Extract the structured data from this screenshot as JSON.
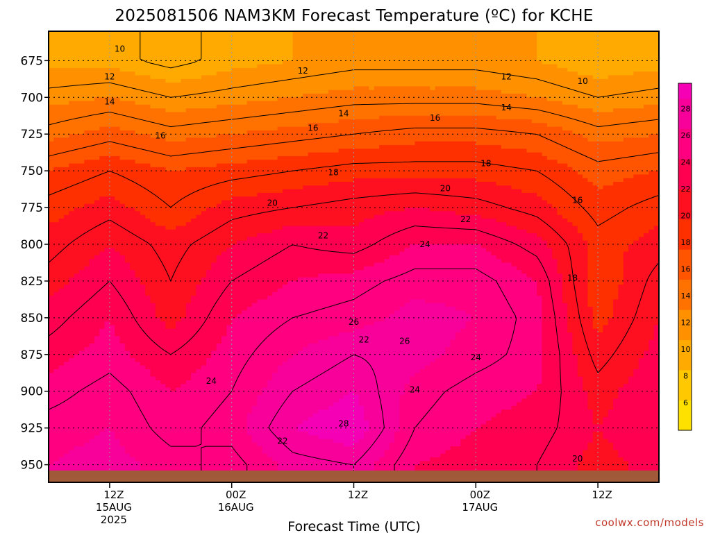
{
  "chart_data": {
    "type": "heatmap",
    "title": "2025081506 NAM3KM Forecast Temperature (ºC) for KCHE",
    "xlabel": "Forecast Time (UTC)",
    "ylabel": "",
    "credit": "coolwx.com/models",
    "y_ticks": [
      675,
      700,
      725,
      750,
      775,
      800,
      825,
      850,
      875,
      900,
      925,
      950
    ],
    "y_range": [
      655,
      962
    ],
    "y_direction": "pressure decreasing upward",
    "x_range_hours": [
      0,
      60
    ],
    "x_ticks": [
      {
        "hour": 6,
        "lines": [
          "12Z",
          "15AUG",
          "2025"
        ]
      },
      {
        "hour": 18,
        "lines": [
          "00Z",
          "16AUG"
        ]
      },
      {
        "hour": 30,
        "lines": [
          "12Z"
        ]
      },
      {
        "hour": 42,
        "lines": [
          "00Z",
          "17AUG"
        ]
      },
      {
        "hour": 54,
        "lines": [
          "12Z"
        ]
      }
    ],
    "grid": true,
    "colorbar": {
      "placement": "right",
      "ticks": [
        6,
        8,
        10,
        12,
        14,
        16,
        18,
        20,
        22,
        24,
        26,
        28
      ],
      "colors": [
        "#ffe100",
        "#ffc800",
        "#ffaa00",
        "#ff9000",
        "#ff7200",
        "#ff5400",
        "#ff3000",
        "#ff1020",
        "#ff0050",
        "#ff0080",
        "#f8009a",
        "#f500b4"
      ]
    },
    "levels": [
      675,
      700,
      725,
      750,
      775,
      800,
      825,
      850,
      875,
      900,
      925,
      950
    ],
    "hours": [
      0,
      6,
      12,
      18,
      24,
      30,
      36,
      42,
      48,
      54,
      60
    ],
    "temperature": [
      [
        10.5,
        10.5,
        9.5,
        10.5,
        11,
        11.5,
        11.5,
        11.5,
        11,
        10,
        10.5
      ],
      [
        12.5,
        13,
        12,
        12.5,
        13,
        13.5,
        13.5,
        13.5,
        13,
        12,
        12.5
      ],
      [
        14.5,
        15.5,
        14.5,
        15,
        15.5,
        16,
        16.5,
        16.5,
        16,
        14.5,
        15
      ],
      [
        17,
        18,
        17,
        17.5,
        18,
        18.5,
        18.5,
        18.5,
        18,
        16.5,
        17
      ],
      [
        18.5,
        19.5,
        18,
        19.5,
        20,
        20.5,
        21,
        20.5,
        19.5,
        17.5,
        18.5
      ],
      [
        19.5,
        21,
        19.5,
        21,
        22,
        21.5,
        23,
        23,
        21.5,
        18.5,
        19.5
      ],
      [
        20.5,
        22,
        20,
        22,
        23,
        23.5,
        24.5,
        24.5,
        23,
        18,
        20.5
      ],
      [
        21.5,
        23,
        20.5,
        23,
        24,
        24.5,
        25.5,
        25,
        23.5,
        18.5,
        21
      ],
      [
        22.5,
        23.5,
        22,
        23.5,
        25,
        26,
        25.5,
        24.5,
        23.5,
        19.5,
        21.5
      ],
      [
        23.5,
        24.5,
        23,
        24,
        26,
        27,
        24.5,
        23.5,
        23,
        20.5,
        22
      ],
      [
        24.5,
        25,
        23.5,
        24.5,
        27,
        28,
        24,
        23,
        22.5,
        21,
        22
      ],
      [
        25,
        25.5,
        24.5,
        23.5,
        25.5,
        26,
        23,
        22.5,
        22,
        20.5,
        21.5
      ]
    ],
    "contour_labels": [
      {
        "value": "10",
        "hour": 7.0,
        "level": 667
      },
      {
        "value": "12",
        "hour": 6.0,
        "level": 686
      },
      {
        "value": "12",
        "hour": 25.0,
        "level": 682
      },
      {
        "value": "12",
        "hour": 45.0,
        "level": 686
      },
      {
        "value": "10",
        "hour": 52.5,
        "level": 689
      },
      {
        "value": "14",
        "hour": 6.0,
        "level": 703
      },
      {
        "value": "14",
        "hour": 29.0,
        "level": 711
      },
      {
        "value": "14",
        "hour": 45.0,
        "level": 707
      },
      {
        "value": "16",
        "hour": 11.0,
        "level": 726
      },
      {
        "value": "16",
        "hour": 26.0,
        "level": 721
      },
      {
        "value": "16",
        "hour": 38.0,
        "level": 714
      },
      {
        "value": "18",
        "hour": 28.0,
        "level": 751
      },
      {
        "value": "18",
        "hour": 43.0,
        "level": 745
      },
      {
        "value": "16",
        "hour": 52.0,
        "level": 770
      },
      {
        "value": "20",
        "hour": 22.0,
        "level": 772
      },
      {
        "value": "20",
        "hour": 39.0,
        "level": 762
      },
      {
        "value": "22",
        "hour": 27.0,
        "level": 794
      },
      {
        "value": "22",
        "hour": 41.0,
        "level": 783
      },
      {
        "value": "24",
        "hour": 37.0,
        "level": 800
      },
      {
        "value": "18",
        "hour": 51.5,
        "level": 823
      },
      {
        "value": "26",
        "hour": 30.0,
        "level": 853
      },
      {
        "value": "22",
        "hour": 31.0,
        "level": 865
      },
      {
        "value": "26",
        "hour": 35.0,
        "level": 866
      },
      {
        "value": "24",
        "hour": 42.0,
        "level": 877
      },
      {
        "value": "24",
        "hour": 16.0,
        "level": 893
      },
      {
        "value": "24",
        "hour": 36.0,
        "level": 899
      },
      {
        "value": "28",
        "hour": 29.0,
        "level": 922
      },
      {
        "value": "22",
        "hour": 23.0,
        "level": 934
      },
      {
        "value": "20",
        "hour": 52.0,
        "level": 946
      }
    ]
  }
}
